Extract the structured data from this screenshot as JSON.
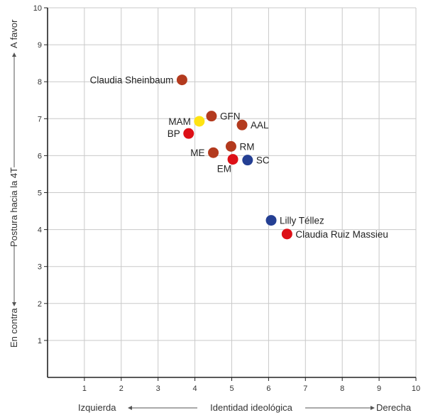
{
  "chart_data": {
    "type": "scatter",
    "xlim": [
      0,
      10
    ],
    "ylim": [
      0,
      10
    ],
    "x_ticks": [
      "1",
      "2",
      "3",
      "4",
      "5",
      "6",
      "7",
      "8",
      "9",
      "10"
    ],
    "y_ticks": [
      "1",
      "2",
      "3",
      "4",
      "5",
      "6",
      "7",
      "8",
      "9",
      "10"
    ],
    "grid": true,
    "x_axis": {
      "left_label": "Izquierda",
      "center_label": "Identidad ideológica",
      "right_label": "Derecha"
    },
    "y_axis": {
      "bottom_label": "En contra",
      "center_label": "Postura hacia la 4T",
      "top_label": "A favor"
    },
    "colors": {
      "dark_red": "#b33a1e",
      "red": "#dd0f16",
      "blue": "#243f93",
      "yellow": "#ffe312"
    },
    "points": [
      {
        "label": "Claudia Sheinbaum",
        "x": 3.65,
        "y": 8.05,
        "color": "#b33a1e",
        "label_pos": "left"
      },
      {
        "label": "GFN",
        "x": 4.45,
        "y": 7.07,
        "color": "#b33a1e",
        "label_pos": "right"
      },
      {
        "label": "MAM",
        "x": 4.12,
        "y": 6.93,
        "color": "#ffe312",
        "label_pos": "left"
      },
      {
        "label": "AAL",
        "x": 5.28,
        "y": 6.83,
        "color": "#b33a1e",
        "label_pos": "right"
      },
      {
        "label": "BP",
        "x": 3.83,
        "y": 6.6,
        "color": "#dd0f16",
        "label_pos": "left"
      },
      {
        "label": "RM",
        "x": 4.98,
        "y": 6.25,
        "color": "#b33a1e",
        "label_pos": "right"
      },
      {
        "label": "ME",
        "x": 4.5,
        "y": 6.08,
        "color": "#b33a1e",
        "label_pos": "left"
      },
      {
        "label": "EM",
        "x": 5.03,
        "y": 5.9,
        "color": "#dd0f16",
        "label_pos": "below-left"
      },
      {
        "label": "SC",
        "x": 5.43,
        "y": 5.88,
        "color": "#243f93",
        "label_pos": "right"
      },
      {
        "label": "Lilly Téllez",
        "x": 6.07,
        "y": 4.25,
        "color": "#243f93",
        "label_pos": "right"
      },
      {
        "label": "Claudia Ruiz Massieu",
        "x": 6.5,
        "y": 3.88,
        "color": "#dd0f16",
        "label_pos": "right"
      }
    ]
  }
}
